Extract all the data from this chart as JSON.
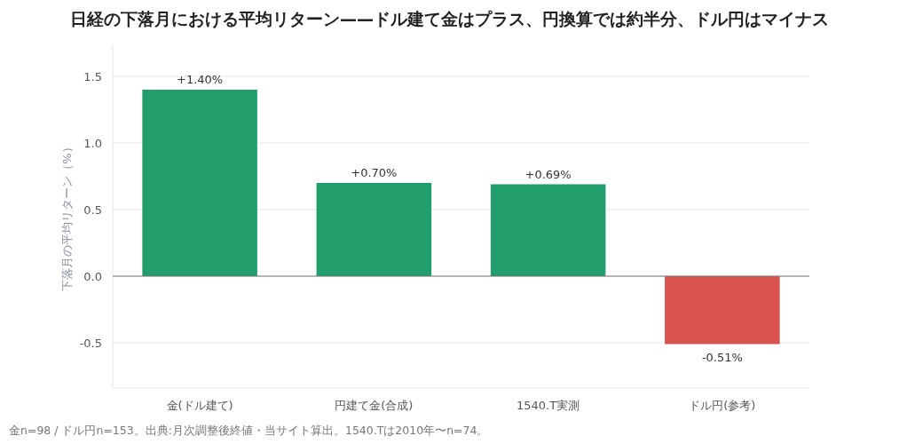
{
  "chart_data": {
    "type": "bar",
    "title": "日経の下落月における平均リターン——ドル建て金はプラス、円換算では約半分、ドル円はマイナス",
    "ylabel": "下落月の平均リターン（%）",
    "categories": [
      "金(ドル建て)",
      "円建て金(合成)",
      "1540.T実測",
      "ドル円(参考)"
    ],
    "values": [
      1.4,
      0.7,
      0.69,
      -0.51
    ],
    "colors": [
      "#219e6b",
      "#219e6b",
      "#219e6b",
      "#d9534f"
    ],
    "value_labels": [
      "+1.40%",
      "+0.70%",
      "+0.69%",
      "-0.51%"
    ],
    "ylim": [
      -0.84,
      1.74
    ],
    "yticks": [
      -0.5,
      {
        "value": 0,
        "label": "0.0"
      },
      0.5,
      {
        "value": 1,
        "label": "1.0"
      },
      1.5
    ],
    "grid": "y",
    "annotations": [
      "金n=98 / ドル円n=153。出典:月次調整後終値・当サイト算出。1540.Tは2010年〜n=74。"
    ]
  }
}
